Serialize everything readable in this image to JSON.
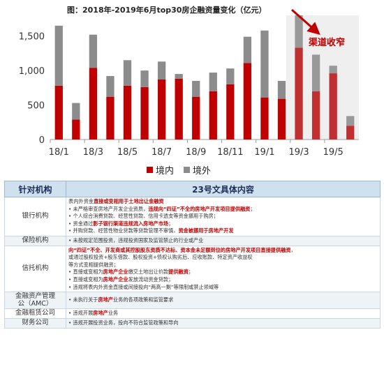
{
  "chart_data": {
    "type": "bar",
    "stacked": true,
    "title": "图：2018年-2019年6月top30房企融资量变化（亿元）",
    "categories": [
      "18/1",
      "18/2",
      "18/3",
      "18/4",
      "18/5",
      "18/6",
      "18/7",
      "18/8",
      "18/9",
      "18/10",
      "18/11",
      "18/12",
      "19/1",
      "19/2",
      "19/3",
      "19/4",
      "19/5",
      "19/6"
    ],
    "tick_labels": [
      "18/1",
      "18/3",
      "18/5",
      "18/7",
      "18/9",
      "18/11",
      "19/1",
      "19/3",
      "19/5"
    ],
    "yticks": [
      0,
      500,
      1000,
      1500
    ],
    "ytick_labels": [
      "0",
      "500",
      "1,000",
      "1,500"
    ],
    "ylim": [
      0,
      1800
    ],
    "series": [
      {
        "name": "境内",
        "color": "#c00000",
        "values": [
          780,
          290,
          1040,
          620,
          780,
          760,
          870,
          880,
          620,
          700,
          800,
          1110,
          610,
          590,
          1330,
          700,
          960,
          200
        ]
      },
      {
        "name": "境外",
        "color": "#8c8c8c",
        "values": [
          870,
          240,
          480,
          300,
          370,
          240,
          260,
          70,
          230,
          270,
          230,
          380,
          970,
          260,
          470,
          530,
          110,
          140
        ]
      }
    ],
    "annotation": "渠道收窄",
    "legend_position": "bottom"
  },
  "table": {
    "headers": [
      "针对机构",
      "23号文具体内容"
    ],
    "rows": [
      {
        "org": "银行机构",
        "lines": [
          [
            {
              "t": "表内外资金"
            },
            {
              "t": "直接或变相用于土地出让金融资",
              "h": true
            }
          ],
          [
            {
              "t": "• 未严格审查房地产开发企业资质，"
            },
            {
              "t": "违规向“四证”不全的房地产开发项目提供融资",
              "h": true
            },
            {
              "t": "；"
            }
          ],
          [
            {
              "t": "• 个人综合消费贷款、经营性贷款、信用卡透支等资金挪用于购房；"
            }
          ],
          [
            {
              "t": "• 资金通过"
            },
            {
              "t": "影子银行渠道违规流入房地产市场",
              "h": true
            },
            {
              "t": "；"
            }
          ],
          [
            {
              "t": "• 并购贷款、经营性物业贷款等贷款管理不审慎，"
            },
            {
              "t": "资金被挪用于房地产开发",
              "h": true
            }
          ]
        ]
      },
      {
        "org": "保险机构",
        "lines": [
          [
            {
              "t": "• 未按规定范围投资，违规投资国家及监管禁止的行业或产业"
            }
          ]
        ]
      },
      {
        "org": "信托机构",
        "lines": [
          [
            {
              "t": "向“四证”不全、开发商或其控股股东资质不达标、资本金未足额到位的房地产开发项目直接提供融资",
              "h": true
            },
            {
              "t": "，"
            }
          ],
          [
            {
              "t": "或通过股权投资+股东借款、股权投资+债权认购劣后、应收账款、特定资产收益权"
            }
          ],
          [
            {
              "t": "等方式变相提供融资；"
            }
          ],
          [
            {
              "t": "• 直接或变相为"
            },
            {
              "t": "房地产企业",
              "h": true
            },
            {
              "t": "缴交土地出让价款"
            },
            {
              "t": "提供融资",
              "h": true
            },
            {
              "t": "；"
            }
          ],
          [
            {
              "t": "• 直接或变相为"
            },
            {
              "t": "房地产企业",
              "h": true
            },
            {
              "t": "发放流动资金贷款；"
            }
          ],
          [
            {
              "t": "• 违规将表内外资金直接或间接投向“两高一剩”等限制或禁止领域等"
            }
          ]
        ]
      },
      {
        "org": "金融资产管理公（AMC）",
        "org_lines": [
          "金融资产管理",
          "公（AMC）"
        ],
        "lines": [
          [
            {
              "t": "• 未执行关于"
            },
            {
              "t": "房地产",
              "h": true
            },
            {
              "t": "业务的各项政策和监管要求"
            }
          ]
        ]
      },
      {
        "org": "金融租赁公司",
        "lines": [
          [
            {
              "t": "• 违规开展"
            },
            {
              "t": "房地产",
              "h": true
            },
            {
              "t": "业务"
            }
          ]
        ]
      },
      {
        "org": "财务公司",
        "lines": [
          [
            {
              "t": "• 违规开展投资业务，投向不符合监管政策和导向"
            }
          ]
        ]
      }
    ]
  }
}
